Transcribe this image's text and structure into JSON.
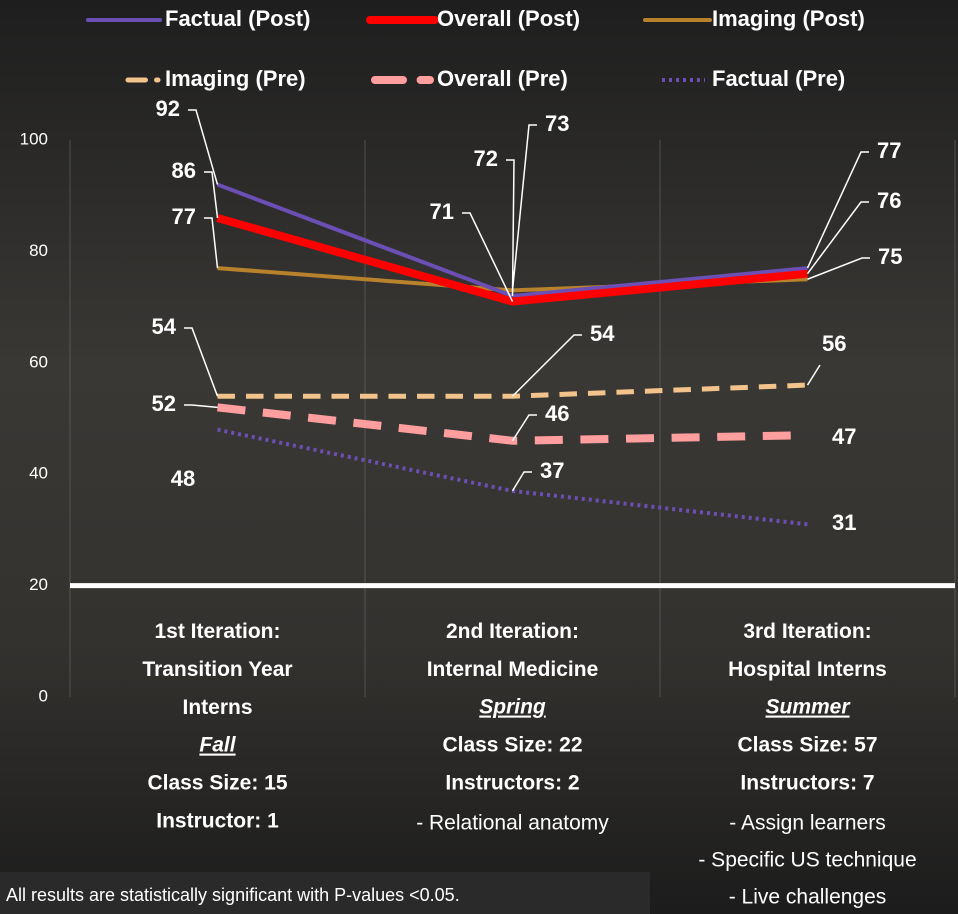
{
  "chart_data": {
    "type": "line",
    "categories": [
      "1st Iteration:\nTransition Year\nInterns",
      "2nd Iteration:\nInternal Medicine",
      "3rd Iteration:\nHospital Interns"
    ],
    "category_details": [
      {
        "season": "Fall",
        "class_size": "Class Size: 15",
        "instructors": "Instructor: 1",
        "notes": []
      },
      {
        "season": "Spring",
        "class_size": "Class Size: 22",
        "instructors": "Instructors: 2",
        "notes": [
          "- Relational anatomy"
        ]
      },
      {
        "season": "Summer",
        "class_size": "Class Size: 57",
        "instructors": "Instructors: 7",
        "notes": [
          "- Assign learners",
          "- Specific US technique",
          "- Live challenges"
        ]
      }
    ],
    "series": [
      {
        "name": "Factual (Post)",
        "color": "#6b4fb5",
        "style": "solid",
        "width": 4,
        "values": [
          92,
          72,
          77
        ]
      },
      {
        "name": "Overall (Post)",
        "color": "#ff0000",
        "style": "solid",
        "width": 8,
        "values": [
          86,
          71,
          76
        ]
      },
      {
        "name": "Imaging (Post)",
        "color": "#b8812c",
        "style": "solid",
        "width": 4,
        "values": [
          77,
          73,
          75
        ]
      },
      {
        "name": "Imaging (Pre)",
        "color": "#f2c48c",
        "style": "dashed",
        "width": 5,
        "values": [
          54,
          54,
          56
        ]
      },
      {
        "name": "Overall (Pre)",
        "color": "#ff9e9e",
        "style": "dashed",
        "width": 8,
        "values": [
          52,
          46,
          47
        ]
      },
      {
        "name": "Factual (Pre)",
        "color": "#6b4fb5",
        "style": "dotted",
        "width": 4,
        "values": [
          48,
          37,
          31
        ]
      }
    ],
    "ylim": [
      0,
      100
    ],
    "yticks": [
      0,
      20,
      40,
      60,
      80,
      100
    ],
    "axis_line_value": 20,
    "footnote": "All results are statistically significant with P-values <0.05."
  }
}
